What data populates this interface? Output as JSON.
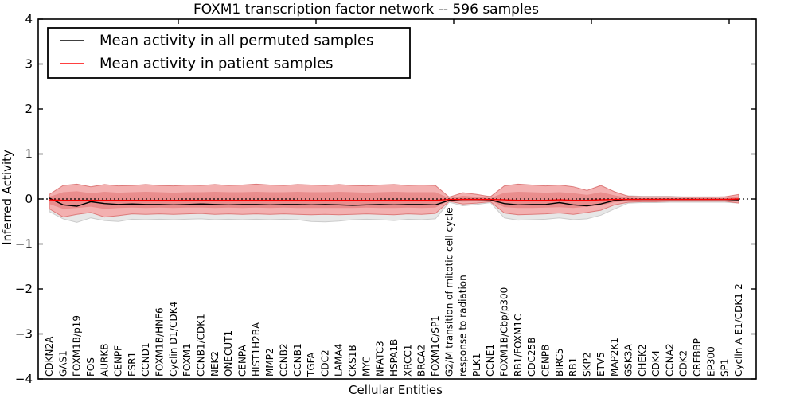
{
  "title": "FOXM1 transcription factor network -- 596 samples",
  "legend": {
    "items": [
      {
        "label": "Mean activity in all permuted samples",
        "color": "#000000"
      },
      {
        "label": "Mean activity in patient samples",
        "color": "#ff0000"
      }
    ]
  },
  "axes": {
    "ylabel": "Inferred Activity",
    "xlabel": "Cellular Entities",
    "yticks": [
      "4",
      "3",
      "2",
      "1",
      "0",
      "−1",
      "−2",
      "−3",
      "−4"
    ]
  },
  "chart_data": {
    "type": "line",
    "title": "FOXM1 transcription factor network -- 596 samples",
    "xlabel": "Cellular Entities",
    "ylabel": "Inferred Activity",
    "ylim": [
      -4,
      4
    ],
    "zero_line": 0,
    "legend_position": "upper left",
    "grid": false,
    "categories": [
      "CDKN2A",
      "GAS1",
      "FOXM1B/p19",
      "FOS",
      "AURKB",
      "CENPF",
      "ESR1",
      "CCND1",
      "FOXM1B/HNF6",
      "Cyclin D1/CDK4",
      "FOXM1",
      "CCNB1/CDK1",
      "NEK2",
      "ONECUT1",
      "CENPA",
      "HIST1H2BA",
      "MMP2",
      "CCNB2",
      "CCNB1",
      "TGFA",
      "CDC2",
      "LAMA4",
      "CKS1B",
      "MYC",
      "NFATC3",
      "HSPA1B",
      "XRCC1",
      "BRCA2",
      "FOXM1C/SP1",
      "G2/M transition of mitotic cell cycle",
      "response to radiation",
      "PLK1",
      "CCNE1",
      "FOXM1B/Cbp/p300",
      "RB1/FOXM1C",
      "CDC25B",
      "CENPB",
      "BIRC5",
      "RB1",
      "SKP2",
      "ETV5",
      "MAP2K1",
      "GSK3A",
      "CHEK2",
      "CDK4",
      "CCNA2",
      "CDK2",
      "CREBBP",
      "EP300",
      "SP1",
      "Cyclin A-E1/CDK1-2"
    ],
    "series": [
      {
        "name": "Mean activity in all permuted samples",
        "color": "#000000",
        "values": [
          0.02,
          -0.13,
          -0.16,
          -0.06,
          -0.1,
          -0.12,
          -0.11,
          -0.12,
          -0.12,
          -0.13,
          -0.12,
          -0.11,
          -0.12,
          -0.13,
          -0.12,
          -0.12,
          -0.13,
          -0.12,
          -0.12,
          -0.13,
          -0.12,
          -0.13,
          -0.14,
          -0.13,
          -0.12,
          -0.13,
          -0.12,
          -0.12,
          -0.13,
          -0.03,
          -0.01,
          -0.01,
          -0.02,
          -0.1,
          -0.13,
          -0.12,
          -0.12,
          -0.08,
          -0.13,
          -0.15,
          -0.11,
          -0.03,
          -0.01,
          -0.01,
          -0.01,
          -0.01,
          -0.01,
          -0.01,
          -0.01,
          -0.01,
          -0.02
        ]
      },
      {
        "name": "Mean activity in patient samples",
        "color": "#ff0000",
        "values": [
          -0.02,
          -0.03,
          -0.03,
          -0.03,
          -0.03,
          -0.03,
          -0.03,
          -0.03,
          -0.03,
          -0.03,
          -0.03,
          -0.03,
          -0.03,
          -0.03,
          -0.03,
          -0.03,
          -0.03,
          -0.03,
          -0.03,
          -0.03,
          -0.03,
          -0.03,
          -0.03,
          -0.03,
          -0.03,
          -0.03,
          -0.03,
          -0.03,
          -0.03,
          -0.01,
          -0.01,
          -0.01,
          -0.01,
          -0.02,
          -0.03,
          -0.03,
          -0.03,
          -0.02,
          -0.03,
          -0.03,
          -0.02,
          -0.01,
          -0.01,
          -0.01,
          -0.01,
          -0.01,
          -0.01,
          -0.01,
          -0.01,
          -0.01,
          0.0
        ]
      }
    ],
    "bands": [
      {
        "name": "permuted-range",
        "fill": "#e7e7e7",
        "stroke": "#cccccc",
        "upper": [
          0.06,
          0.16,
          0.18,
          0.14,
          0.17,
          0.15,
          0.16,
          0.17,
          0.16,
          0.15,
          0.16,
          0.16,
          0.17,
          0.16,
          0.16,
          0.17,
          0.16,
          0.16,
          0.17,
          0.16,
          0.16,
          0.17,
          0.16,
          0.15,
          0.16,
          0.17,
          0.16,
          0.16,
          0.16,
          0.05,
          0.11,
          0.08,
          0.06,
          0.15,
          0.17,
          0.16,
          0.15,
          0.16,
          0.14,
          0.12,
          0.14,
          0.1,
          0.07,
          0.06,
          0.06,
          0.06,
          0.05,
          0.05,
          0.05,
          0.05,
          0.06
        ],
        "lower": [
          -0.28,
          -0.44,
          -0.52,
          -0.42,
          -0.48,
          -0.5,
          -0.45,
          -0.46,
          -0.45,
          -0.46,
          -0.45,
          -0.44,
          -0.46,
          -0.45,
          -0.46,
          -0.45,
          -0.46,
          -0.45,
          -0.46,
          -0.5,
          -0.51,
          -0.49,
          -0.46,
          -0.45,
          -0.46,
          -0.48,
          -0.45,
          -0.46,
          -0.44,
          -0.07,
          -0.15,
          -0.12,
          -0.08,
          -0.42,
          -0.47,
          -0.46,
          -0.45,
          -0.42,
          -0.46,
          -0.44,
          -0.36,
          -0.22,
          -0.09,
          -0.08,
          -0.08,
          -0.07,
          -0.07,
          -0.07,
          -0.07,
          -0.07,
          -0.09
        ]
      },
      {
        "name": "patient-range-outer",
        "fill": "#f3b0b0",
        "stroke": "#dd7a7a",
        "upper": [
          0.1,
          0.3,
          0.33,
          0.27,
          0.32,
          0.29,
          0.3,
          0.32,
          0.3,
          0.29,
          0.31,
          0.3,
          0.32,
          0.3,
          0.31,
          0.33,
          0.31,
          0.3,
          0.32,
          0.31,
          0.3,
          0.32,
          0.3,
          0.29,
          0.31,
          0.32,
          0.3,
          0.31,
          0.3,
          0.04,
          0.14,
          0.1,
          0.05,
          0.29,
          0.33,
          0.31,
          0.29,
          0.31,
          0.27,
          0.19,
          0.3,
          0.16,
          0.06,
          0.05,
          0.05,
          0.05,
          0.04,
          0.04,
          0.04,
          0.05,
          0.1
        ],
        "lower": [
          -0.22,
          -0.4,
          -0.34,
          -0.3,
          -0.4,
          -0.37,
          -0.33,
          -0.34,
          -0.33,
          -0.34,
          -0.33,
          -0.32,
          -0.34,
          -0.33,
          -0.34,
          -0.33,
          -0.34,
          -0.33,
          -0.34,
          -0.35,
          -0.34,
          -0.35,
          -0.34,
          -0.33,
          -0.34,
          -0.35,
          -0.33,
          -0.34,
          -0.32,
          -0.05,
          -0.11,
          -0.09,
          -0.06,
          -0.31,
          -0.35,
          -0.34,
          -0.33,
          -0.31,
          -0.34,
          -0.3,
          -0.25,
          -0.13,
          -0.07,
          -0.06,
          -0.06,
          -0.05,
          -0.05,
          -0.05,
          -0.05,
          -0.05,
          -0.09
        ]
      },
      {
        "name": "patient-range-inner",
        "fill": "#e98d8d",
        "stroke": "none",
        "upper": [
          0.05,
          0.15,
          0.17,
          0.13,
          0.16,
          0.14,
          0.15,
          0.16,
          0.15,
          0.14,
          0.15,
          0.15,
          0.16,
          0.15,
          0.15,
          0.16,
          0.15,
          0.15,
          0.16,
          0.15,
          0.15,
          0.16,
          0.15,
          0.14,
          0.15,
          0.16,
          0.15,
          0.15,
          0.15,
          0.02,
          0.07,
          0.05,
          0.02,
          0.14,
          0.16,
          0.15,
          0.14,
          0.15,
          0.13,
          0.09,
          0.15,
          0.08,
          0.03,
          0.02,
          0.02,
          0.02,
          0.02,
          0.02,
          0.02,
          0.02,
          0.05
        ],
        "lower": [
          -0.11,
          -0.22,
          -0.2,
          -0.17,
          -0.22,
          -0.2,
          -0.19,
          -0.2,
          -0.19,
          -0.2,
          -0.19,
          -0.19,
          -0.2,
          -0.19,
          -0.2,
          -0.19,
          -0.2,
          -0.19,
          -0.2,
          -0.2,
          -0.2,
          -0.2,
          -0.2,
          -0.19,
          -0.2,
          -0.2,
          -0.19,
          -0.2,
          -0.19,
          -0.03,
          -0.06,
          -0.05,
          -0.03,
          -0.18,
          -0.2,
          -0.2,
          -0.19,
          -0.18,
          -0.2,
          -0.17,
          -0.14,
          -0.07,
          -0.04,
          -0.03,
          -0.03,
          -0.03,
          -0.03,
          -0.03,
          -0.03,
          -0.03,
          -0.05
        ]
      }
    ]
  }
}
